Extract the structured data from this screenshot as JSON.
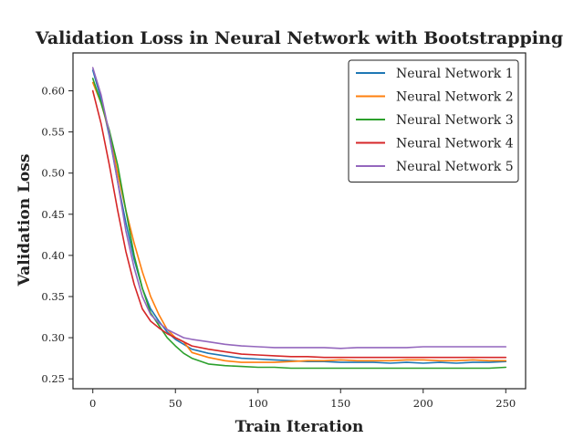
{
  "chart_data": {
    "type": "line",
    "title": "Validation Loss in Neural Network with Bootstrapping",
    "xlabel": "Train Iteration",
    "ylabel": "Validation Loss",
    "xlim": [
      -12,
      262
    ],
    "ylim": [
      0.238,
      0.646
    ],
    "xticks": [
      0,
      50,
      100,
      150,
      200,
      250
    ],
    "yticks": [
      0.25,
      0.3,
      0.35,
      0.4,
      0.45,
      0.5,
      0.55,
      0.6
    ],
    "ytick_labels": [
      "0.25",
      "0.30",
      "0.35",
      "0.40",
      "0.45",
      "0.50",
      "0.55",
      "0.60"
    ],
    "grid": false,
    "legend_position": "top-right",
    "series": [
      {
        "name": "Neural Network 1",
        "color": "#1f77b4",
        "x": [
          0,
          5,
          10,
          15,
          20,
          25,
          30,
          35,
          40,
          45,
          50,
          55,
          60,
          70,
          80,
          90,
          100,
          110,
          120,
          130,
          140,
          150,
          160,
          170,
          180,
          190,
          200,
          210,
          220,
          230,
          240,
          250
        ],
        "values": [
          0.625,
          0.59,
          0.545,
          0.49,
          0.44,
          0.395,
          0.36,
          0.335,
          0.32,
          0.307,
          0.298,
          0.292,
          0.286,
          0.281,
          0.278,
          0.275,
          0.274,
          0.273,
          0.272,
          0.271,
          0.271,
          0.27,
          0.27,
          0.27,
          0.269,
          0.27,
          0.269,
          0.27,
          0.269,
          0.27,
          0.27,
          0.271
        ]
      },
      {
        "name": "Neural Network 2",
        "color": "#ff7f0e",
        "x": [
          0,
          5,
          10,
          15,
          20,
          25,
          30,
          35,
          40,
          45,
          50,
          55,
          60,
          70,
          80,
          90,
          100,
          110,
          120,
          130,
          140,
          150,
          160,
          170,
          180,
          190,
          200,
          210,
          220,
          230,
          240,
          250
        ],
        "values": [
          0.61,
          0.585,
          0.55,
          0.5,
          0.455,
          0.415,
          0.38,
          0.35,
          0.328,
          0.31,
          0.3,
          0.295,
          0.282,
          0.276,
          0.272,
          0.27,
          0.27,
          0.27,
          0.271,
          0.272,
          0.272,
          0.273,
          0.272,
          0.272,
          0.272,
          0.273,
          0.273,
          0.272,
          0.272,
          0.273,
          0.272,
          0.272
        ]
      },
      {
        "name": "Neural Network 3",
        "color": "#2ca02c",
        "x": [
          0,
          5,
          10,
          15,
          20,
          25,
          30,
          35,
          40,
          45,
          50,
          55,
          60,
          70,
          80,
          90,
          100,
          110,
          120,
          130,
          140,
          150,
          160,
          170,
          180,
          190,
          200,
          210,
          220,
          230,
          240,
          250
        ],
        "values": [
          0.615,
          0.585,
          0.552,
          0.51,
          0.455,
          0.4,
          0.36,
          0.33,
          0.315,
          0.3,
          0.29,
          0.281,
          0.275,
          0.268,
          0.266,
          0.265,
          0.264,
          0.264,
          0.263,
          0.263,
          0.263,
          0.263,
          0.263,
          0.263,
          0.263,
          0.263,
          0.263,
          0.263,
          0.263,
          0.263,
          0.263,
          0.264
        ]
      },
      {
        "name": "Neural Network 4",
        "color": "#d62728",
        "x": [
          0,
          5,
          10,
          15,
          20,
          25,
          30,
          35,
          40,
          45,
          50,
          55,
          60,
          70,
          80,
          90,
          100,
          110,
          120,
          130,
          140,
          150,
          160,
          170,
          180,
          190,
          200,
          210,
          220,
          230,
          240,
          250
        ],
        "values": [
          0.6,
          0.56,
          0.51,
          0.455,
          0.405,
          0.365,
          0.335,
          0.32,
          0.312,
          0.305,
          0.3,
          0.295,
          0.29,
          0.286,
          0.283,
          0.28,
          0.279,
          0.278,
          0.277,
          0.277,
          0.276,
          0.276,
          0.276,
          0.276,
          0.276,
          0.276,
          0.276,
          0.276,
          0.276,
          0.276,
          0.276,
          0.276
        ]
      },
      {
        "name": "Neural Network 5",
        "color": "#9467bd",
        "x": [
          0,
          5,
          10,
          15,
          20,
          25,
          30,
          35,
          40,
          45,
          50,
          55,
          60,
          70,
          80,
          90,
          100,
          110,
          120,
          130,
          140,
          150,
          160,
          170,
          180,
          190,
          200,
          210,
          220,
          230,
          240,
          250
        ],
        "values": [
          0.628,
          0.595,
          0.548,
          0.49,
          0.43,
          0.385,
          0.35,
          0.328,
          0.318,
          0.31,
          0.305,
          0.3,
          0.298,
          0.295,
          0.292,
          0.29,
          0.289,
          0.288,
          0.288,
          0.288,
          0.288,
          0.287,
          0.288,
          0.288,
          0.288,
          0.288,
          0.289,
          0.289,
          0.289,
          0.289,
          0.289,
          0.289
        ]
      }
    ]
  }
}
